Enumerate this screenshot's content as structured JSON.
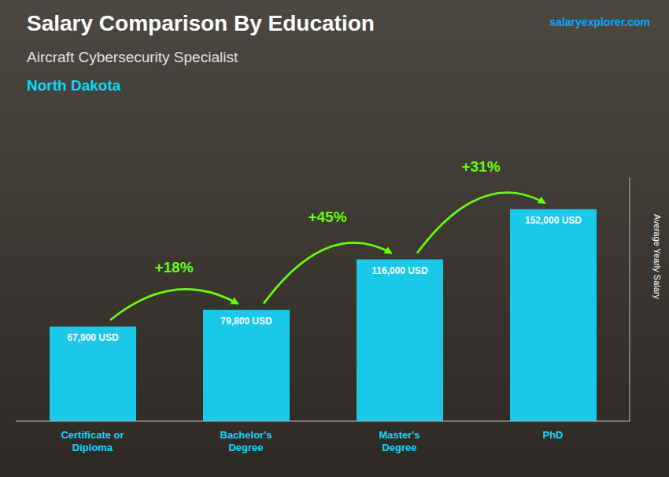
{
  "chart_data": {
    "type": "bar",
    "title": "Salary Comparison By Education",
    "subtitle": "Aircraft Cybersecurity Specialist",
    "ylabel": "Average Yearly Salary",
    "categories": [
      "Certificate or\nDiploma",
      "Bachelor's\nDegree",
      "Master's\nDegree",
      "PhD"
    ],
    "values": [
      67900,
      79800,
      116000,
      152000
    ],
    "value_labels": [
      "67,900 USD",
      "79,800 USD",
      "116,000 USD",
      "152,000 USD"
    ],
    "data_labels": true,
    "color": "#1ac8e8",
    "ylim": [
      0,
      175000
    ],
    "tick_labels": "x",
    "grid": false,
    "annotations": [
      {
        "text": "North Dakota",
        "color": "#00ddff"
      },
      {
        "text": "salaryexplorer.com",
        "color": "#00aaff"
      },
      {
        "text": "+18%",
        "from": "Certificate or\nDiploma",
        "to": "Bachelor's\nDegree",
        "color": "#66ff00"
      },
      {
        "text": "+45%",
        "from": "Bachelor's\nDegree",
        "to": "Master's\nDegree",
        "color": "#66ff00"
      },
      {
        "text": "+31%",
        "from": "Master's\nDegree",
        "to": "PhD",
        "color": "#66ff00"
      }
    ]
  }
}
